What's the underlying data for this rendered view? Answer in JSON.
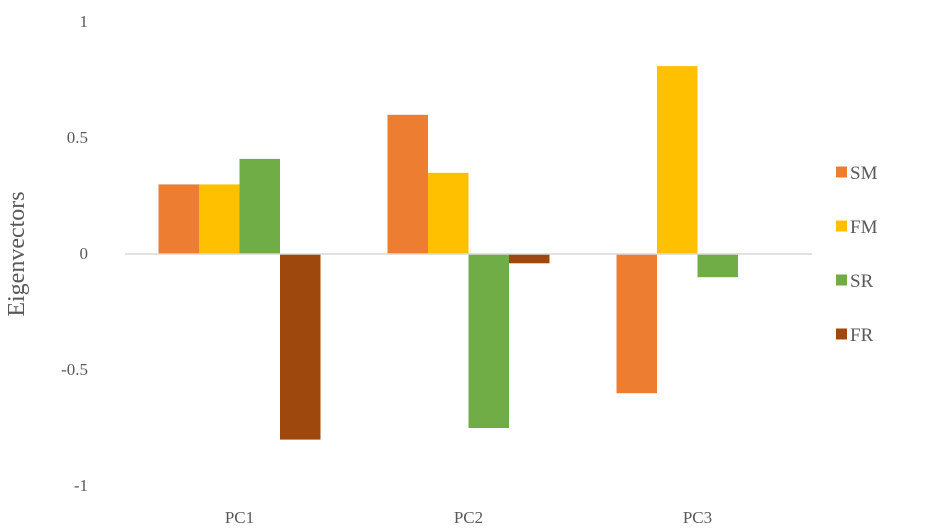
{
  "chart_data": {
    "type": "bar",
    "title": "",
    "xlabel": "",
    "ylabel": "Eigenvectors",
    "categories": [
      "PC1",
      "PC2",
      "PC3"
    ],
    "ylim": [
      -1,
      1
    ],
    "yticks": [
      "1",
      "0.5",
      "0",
      "-0.5",
      "-1"
    ],
    "ytick_values": [
      1,
      0.5,
      0,
      -0.5,
      -1
    ],
    "grid": false,
    "legend_position": "right",
    "series": [
      {
        "name": "SM",
        "color": "#ED7D31",
        "values": [
          0.3,
          0.6,
          -0.6
        ]
      },
      {
        "name": "FM",
        "color": "#FFC000",
        "values": [
          0.3,
          0.35,
          0.81
        ]
      },
      {
        "name": "SR",
        "color": "#70AD47",
        "values": [
          0.41,
          -0.75,
          -0.1
        ]
      },
      {
        "name": "FR",
        "color": "#9E480E",
        "values": [
          -0.8,
          -0.04,
          0
        ]
      }
    ]
  }
}
